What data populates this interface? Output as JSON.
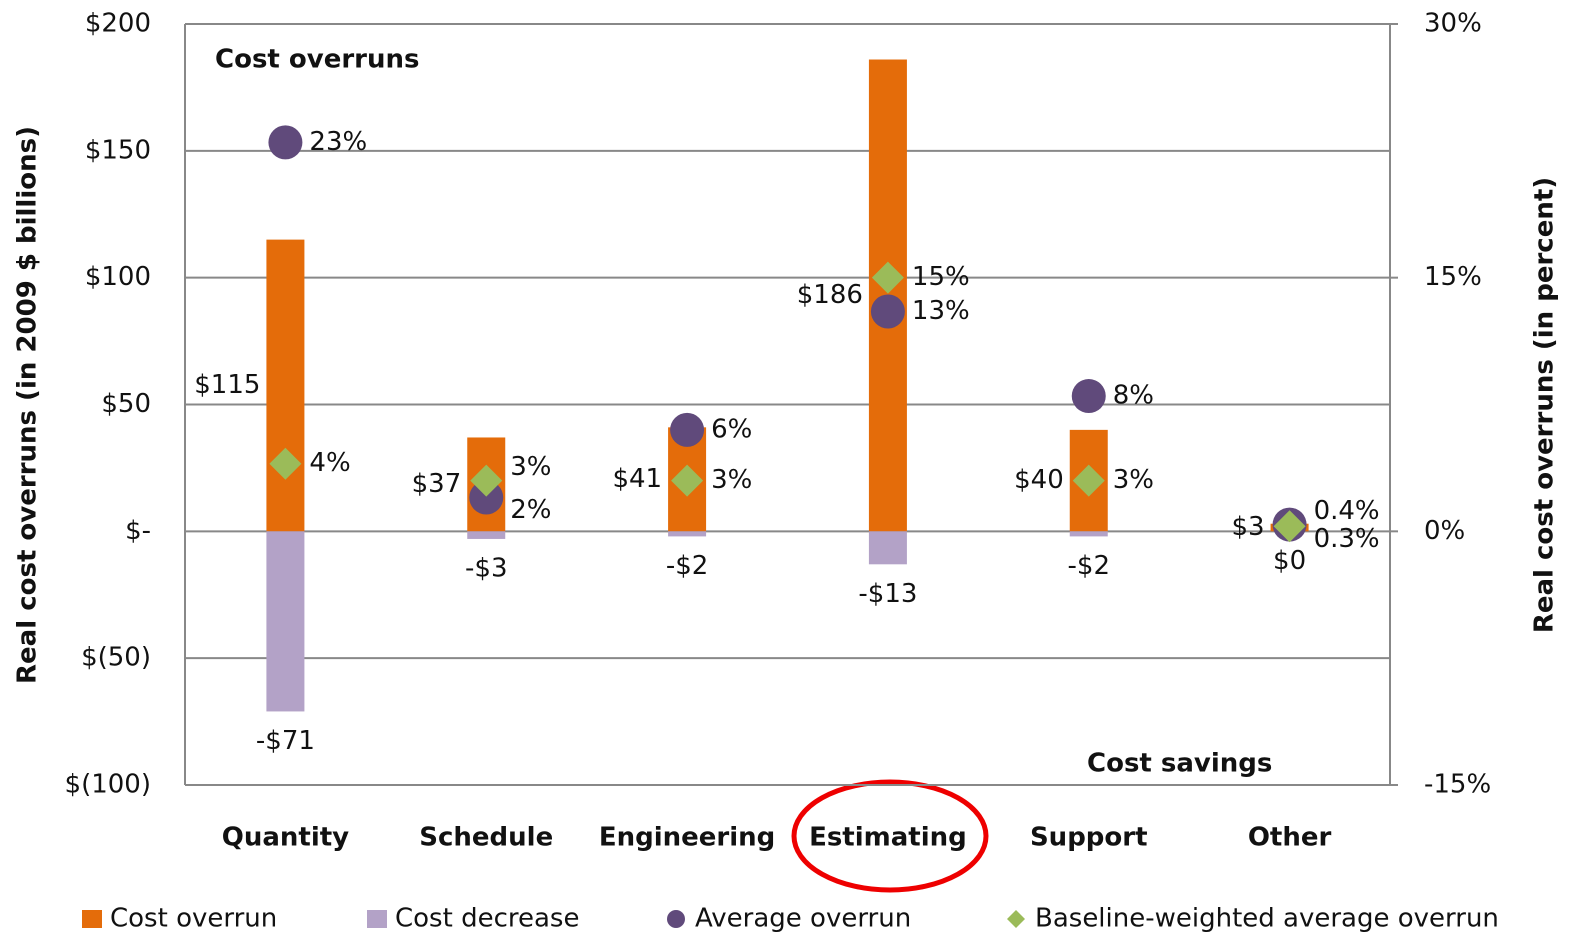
{
  "chart_data": {
    "type": "bar",
    "y_label": "Real cost overruns (in 2009 $ billions)",
    "y2_label": "Real cost overruns  (in percent)",
    "annotations": [
      "Cost overruns",
      "Cost savings"
    ],
    "categories": [
      "Quantity",
      "Schedule",
      "Engineering",
      "Estimating",
      "Support",
      "Other"
    ],
    "series": [
      {
        "name": "Cost overrun",
        "type": "bar",
        "color": "#e46c0a",
        "values": [
          115,
          37,
          41,
          186,
          40,
          3
        ],
        "value_labels": [
          "$115",
          "$37",
          "$41",
          "$186",
          "$40",
          "$3"
        ]
      },
      {
        "name": "Cost decrease",
        "type": "bar",
        "color": "#b3a2c7",
        "values": [
          -71,
          -3,
          -2,
          -13,
          -2,
          0
        ],
        "value_labels": [
          "-$71",
          "-$3",
          "-$2",
          "-$13",
          "-$2",
          "$0"
        ]
      },
      {
        "name": "Average overrun",
        "type": "circle",
        "axis": "y2",
        "color": "#604a7b",
        "values": [
          23,
          2,
          6,
          13,
          8,
          0.4
        ],
        "value_labels": [
          "23%",
          "2%",
          "6%",
          "13%",
          "8%",
          "0.4%"
        ]
      },
      {
        "name": "Baseline-weighted average overrun",
        "type": "diamond",
        "axis": "y2",
        "color": "#9bbb59",
        "values": [
          4,
          3,
          3,
          15,
          3,
          0.3
        ],
        "value_labels": [
          "4%",
          "3%",
          "3%",
          "15%",
          "3%",
          "0.3%"
        ]
      }
    ],
    "ylim": [
      -100,
      200
    ],
    "yticks": [
      {
        "value": -100,
        "label": "$(100)"
      },
      {
        "value": -50,
        "label": "$(50)"
      },
      {
        "value": 0,
        "label": "$-"
      },
      {
        "value": 50,
        "label": "$50"
      },
      {
        "value": 100,
        "label": "$100"
      },
      {
        "value": 150,
        "label": "$150"
      },
      {
        "value": 200,
        "label": "$200"
      }
    ],
    "y2lim": [
      -15,
      30
    ],
    "y2ticks": [
      {
        "value": -15,
        "label": "-15%"
      },
      {
        "value": 0,
        "label": "0%"
      },
      {
        "value": 15,
        "label": "15%"
      },
      {
        "value": 30,
        "label": "30%"
      }
    ],
    "grid": true
  }
}
